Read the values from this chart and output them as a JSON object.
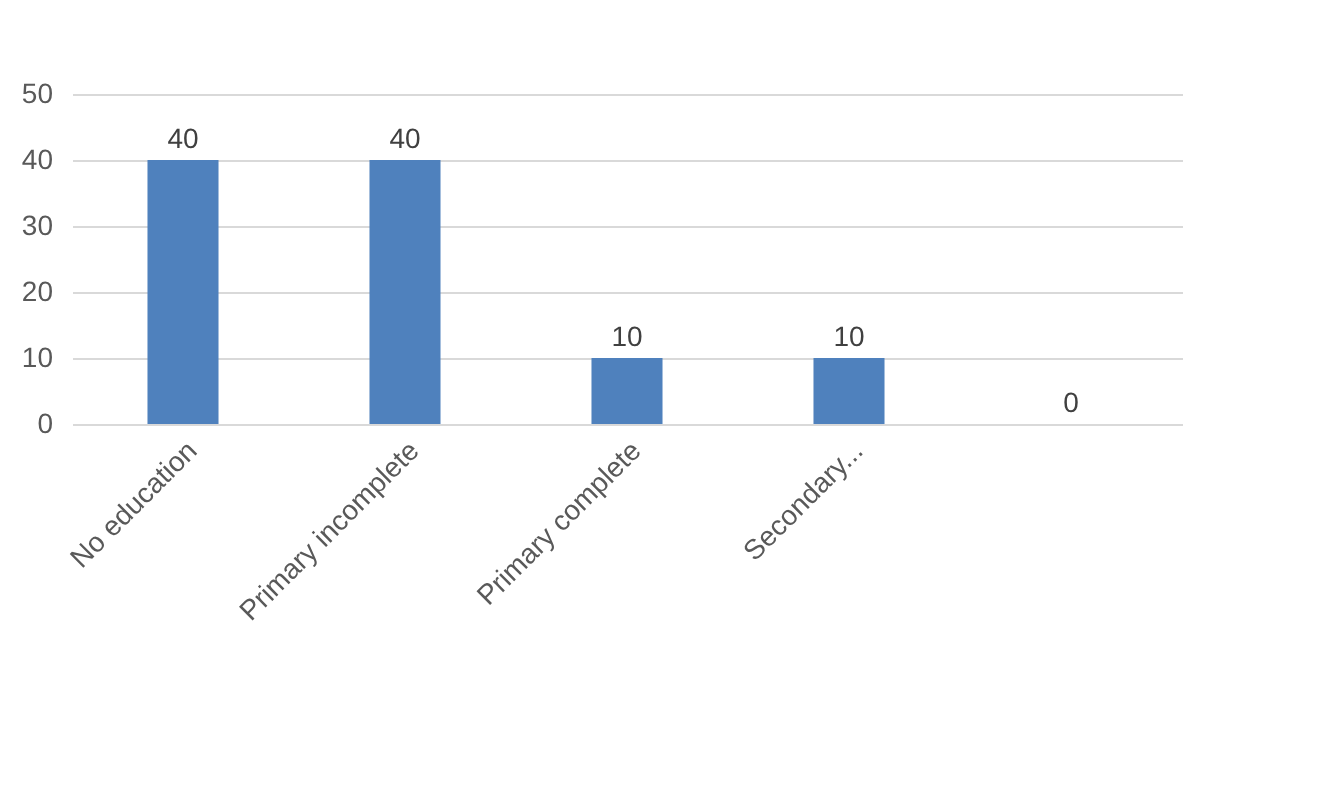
{
  "chart_data": {
    "type": "bar",
    "categories": [
      "No education",
      "Primary incomplete",
      "Primary complete",
      "Secondary...",
      null
    ],
    "values": [
      40,
      40,
      10,
      10,
      0
    ],
    "color": "#4f81bd",
    "ylim": [
      0,
      50
    ],
    "yticks": [
      0,
      10,
      20,
      30,
      40,
      50
    ],
    "grid": "y",
    "data_labels": true
  }
}
